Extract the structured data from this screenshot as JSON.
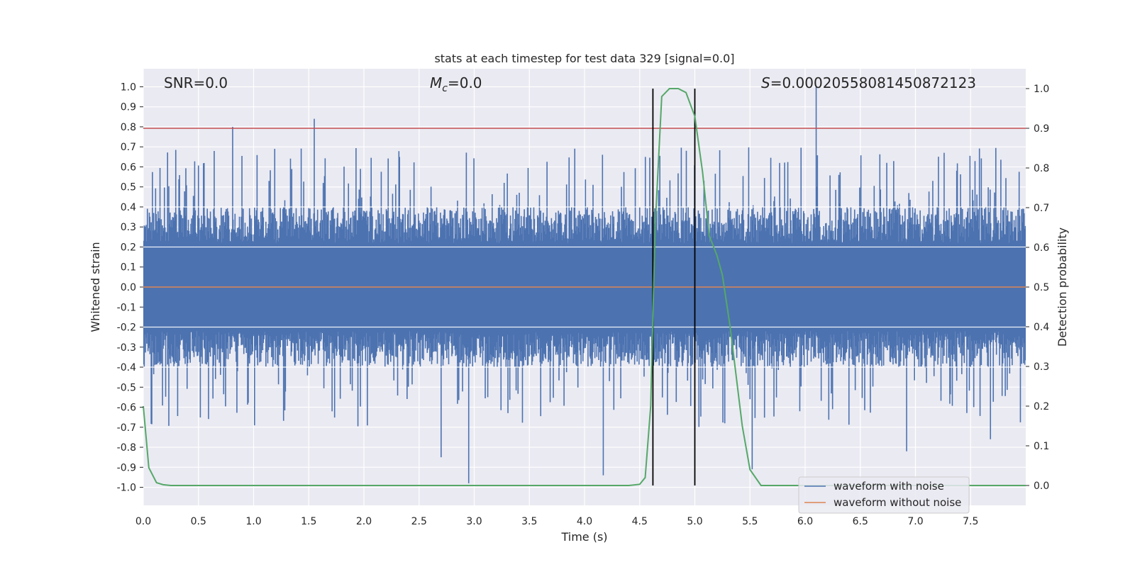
{
  "chart_data": {
    "type": "line",
    "title": "stats at each timestep for test data 329 [signal=0.0]",
    "xlabel": "Time (s)",
    "ylabel": "Whitened strain",
    "y2label": "Detection probability",
    "xlim": [
      0.0,
      8.0
    ],
    "ylim": [
      -1.09,
      1.09
    ],
    "y2lim": [
      -0.05,
      1.05
    ],
    "x_ticks": [
      "0.0",
      "0.5",
      "1.0",
      "1.5",
      "2.0",
      "2.5",
      "3.0",
      "3.5",
      "4.0",
      "4.5",
      "5.0",
      "5.5",
      "6.0",
      "6.5",
      "7.0",
      "7.5"
    ],
    "y_ticks": [
      "1.0",
      "0.9",
      "0.8",
      "0.7",
      "0.6",
      "0.5",
      "0.4",
      "0.3",
      "0.2",
      "0.1",
      "0.0",
      "-0.1",
      "-0.2",
      "-0.3",
      "-0.4",
      "-0.5",
      "-0.6",
      "-0.7",
      "-0.8",
      "-0.9",
      "-1.0"
    ],
    "y2_ticks": [
      "1.0",
      "0.9",
      "0.8",
      "0.7",
      "0.6",
      "0.5",
      "0.4",
      "0.3",
      "0.2",
      "0.1",
      "0.0"
    ],
    "grid": true,
    "legend_position": "lower-right",
    "annotations": {
      "snr": "SNR=0.0",
      "mc_symbol": "M",
      "mc_sub": "c",
      "mc_value": "=0.0",
      "s_symbol": "S",
      "s_value": "=0.00020558081450872123"
    },
    "threshold_line": {
      "y2": 0.9,
      "color": "#c44e52"
    },
    "vertical_markers": {
      "x": [
        4.62,
        5.0
      ],
      "color": "#000000"
    },
    "series": [
      {
        "name": "waveform with noise",
        "color": "#4c72b0",
        "axis": "left",
        "envelope_amplitude": 0.4,
        "notable_spikes": [
          [
            1.55,
            0.84
          ],
          [
            0.81,
            0.8
          ],
          [
            6.1,
            1.0
          ],
          [
            2.95,
            -0.98
          ],
          [
            4.17,
            -0.94
          ],
          [
            5.52,
            -0.91
          ],
          [
            6.92,
            -0.82
          ],
          [
            7.68,
            -0.76
          ],
          [
            2.7,
            -0.85
          ]
        ]
      },
      {
        "name": "waveform without noise",
        "color": "#dd8452",
        "axis": "left",
        "x": [
          0.0,
          8.0
        ],
        "y": [
          0.0,
          0.0
        ]
      },
      {
        "name": "",
        "color": "#55a868",
        "axis": "right",
        "x": [
          0.0,
          0.05,
          0.12,
          0.18,
          0.25,
          0.5,
          1.0,
          2.0,
          3.0,
          4.0,
          4.4,
          4.5,
          4.55,
          4.6,
          4.64,
          4.7,
          4.77,
          4.85,
          4.92,
          5.0,
          5.07,
          5.13,
          5.2,
          5.25,
          5.32,
          5.43,
          5.5,
          5.6,
          6.0,
          7.0,
          8.0
        ],
        "y": [
          0.2,
          0.045,
          0.007,
          0.002,
          0.0,
          0.0,
          0.0,
          0.0,
          0.0,
          0.0,
          0.0,
          0.003,
          0.02,
          0.2,
          0.65,
          0.98,
          1.0,
          1.0,
          0.99,
          0.93,
          0.79,
          0.63,
          0.58,
          0.53,
          0.4,
          0.15,
          0.04,
          0.0,
          0.0,
          0.0,
          0.0
        ]
      }
    ]
  }
}
